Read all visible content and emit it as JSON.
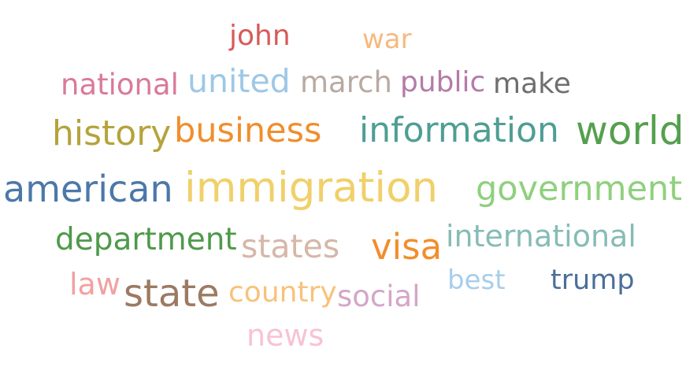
{
  "word_cloud": {
    "words": [
      {
        "text": "john",
        "color": "#d85a5a"
      },
      {
        "text": "war",
        "color": "#f6b97f"
      },
      {
        "text": "national",
        "color": "#d97a9a"
      },
      {
        "text": "united",
        "color": "#9dc8e6"
      },
      {
        "text": "march",
        "color": "#b9aaa2"
      },
      {
        "text": "public",
        "color": "#b57ba8"
      },
      {
        "text": "make",
        "color": "#6f6f6f"
      },
      {
        "text": "history",
        "color": "#b5a33c"
      },
      {
        "text": "business",
        "color": "#f08e2c"
      },
      {
        "text": "information",
        "color": "#4f9e93"
      },
      {
        "text": "world",
        "color": "#55a04e"
      },
      {
        "text": "american",
        "color": "#4c78a8"
      },
      {
        "text": "immigration",
        "color": "#f0d06a"
      },
      {
        "text": "government",
        "color": "#8fd07e"
      },
      {
        "text": "department",
        "color": "#4e9a4a"
      },
      {
        "text": "states",
        "color": "#d6b7a8"
      },
      {
        "text": "visa",
        "color": "#f28e2b"
      },
      {
        "text": "international",
        "color": "#86bcb6"
      },
      {
        "text": "law",
        "color": "#f1a1a1"
      },
      {
        "text": "state",
        "color": "#9c7a62"
      },
      {
        "text": "country",
        "color": "#f8c27a"
      },
      {
        "text": "social",
        "color": "#d4a6c8"
      },
      {
        "text": "best",
        "color": "#a7ceea"
      },
      {
        "text": "trump",
        "color": "#4c6f9a"
      },
      {
        "text": "news",
        "color": "#f7c3d4"
      }
    ]
  }
}
